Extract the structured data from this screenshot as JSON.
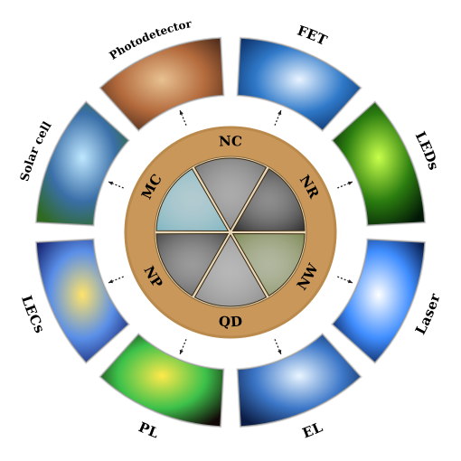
{
  "center": {
    "morphologies": [
      {
        "key": "nc",
        "label": "NC",
        "texture": "#6f6f6f"
      },
      {
        "key": "nr",
        "label": "NR",
        "texture": "#2c2c2c"
      },
      {
        "key": "nw",
        "label": "NW",
        "texture": "#7e8a55"
      },
      {
        "key": "qd",
        "label": "QD",
        "texture": "#8a8a8a"
      },
      {
        "key": "np",
        "label": "NP",
        "texture": "#4a4a4a"
      },
      {
        "key": "mc",
        "label": "MC",
        "texture": "#7fb6c2"
      }
    ],
    "ring_color": "#b98a4c",
    "disc_color": "#c9975a"
  },
  "applications": [
    {
      "key": "fet",
      "label": "FET",
      "colors": [
        "#eaf4ff",
        "#2f79c9",
        "#0b2f66"
      ]
    },
    {
      "key": "leds",
      "label": "LEDs",
      "colors": [
        "#c8ff4a",
        "#2b7d10",
        "#021806"
      ]
    },
    {
      "key": "laser",
      "label": "Laser",
      "colors": [
        "#ffffff",
        "#3f8dff",
        "#03123c"
      ]
    },
    {
      "key": "el",
      "label": "EL",
      "colors": [
        "#e9f5ff",
        "#3c77c8",
        "#0b1c44"
      ]
    },
    {
      "key": "pl",
      "label": "PL",
      "colors": [
        "#ffe94a",
        "#3cc14a",
        "#120907"
      ]
    },
    {
      "key": "lecs",
      "label": "LECs",
      "colors": [
        "#ffe36a",
        "#5a8fe8",
        "#111c66"
      ]
    },
    {
      "key": "solar-cell",
      "label": "Solar cell",
      "colors": [
        "#bfe7ff",
        "#3a6fa8",
        "#2f6a20"
      ]
    },
    {
      "key": "photodetector",
      "label": "Photodetector",
      "colors": [
        "#e8c191",
        "#b36a3c",
        "#4a2a1a"
      ]
    }
  ]
}
